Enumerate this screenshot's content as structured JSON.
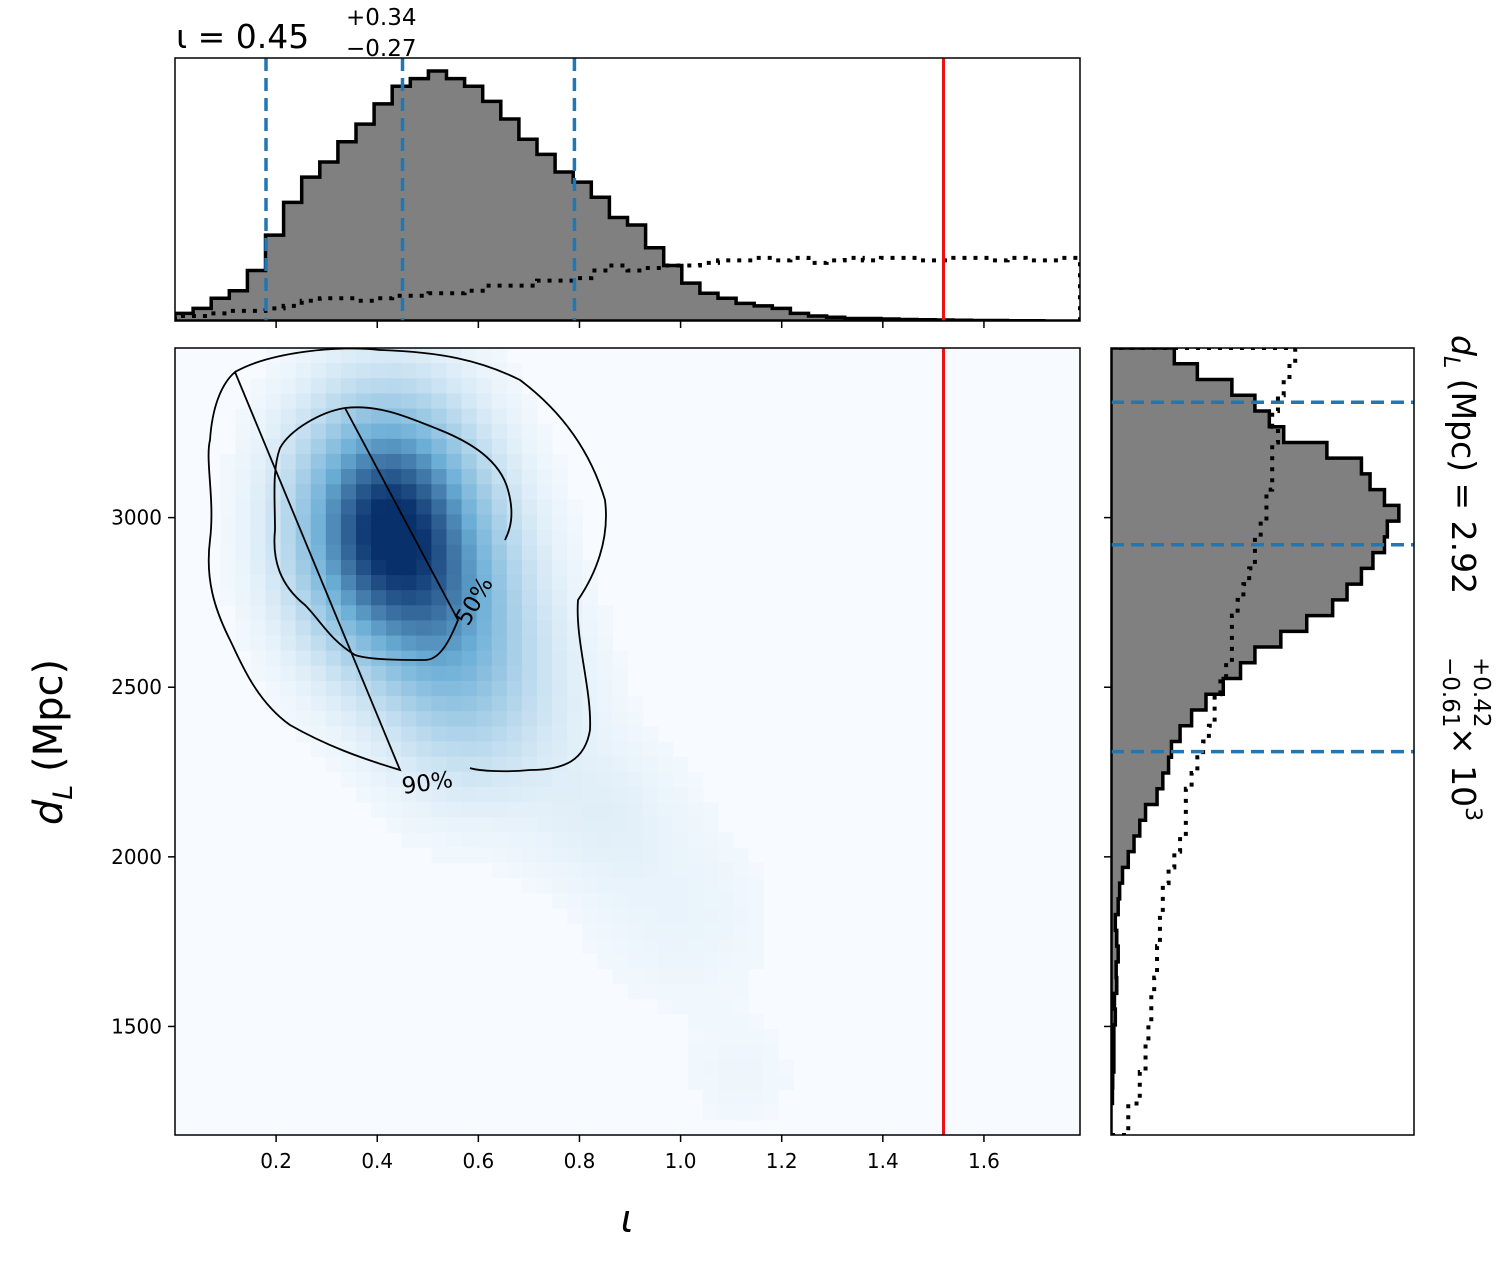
{
  "chart_data": {
    "type": "corner",
    "colors": {
      "hist_fill": "#808080",
      "hist_edge": "#000000",
      "quantile_line": "#1f77b4",
      "true_value_line": "#ee1111",
      "density_cmap_low": "#f7fbff",
      "density_cmap_high": "#08306b"
    },
    "iota": {
      "title": {
        "prefix": "ι = 0.45",
        "sup": "+0.34",
        "sub": "−0.27"
      },
      "xlabel": "ι",
      "xlim": [
        0.0,
        1.79
      ],
      "xticks": [
        "0.2",
        "0.4",
        "0.6",
        "0.8",
        "1.0",
        "1.2",
        "1.4",
        "1.6"
      ],
      "xtick_values": [
        0.2,
        0.4,
        0.6,
        0.8,
        1.0,
        1.2,
        1.4,
        1.6
      ],
      "quantiles": [
        0.18,
        0.45,
        0.79
      ],
      "true_value": 1.52,
      "posterior_hist": {
        "bin_edges_start": 0.0,
        "bin_width": 0.0358,
        "counts": [
          0.03,
          0.05,
          0.09,
          0.12,
          0.2,
          0.34,
          0.47,
          0.57,
          0.63,
          0.71,
          0.78,
          0.86,
          0.93,
          0.96,
          0.99,
          0.96,
          0.93,
          0.87,
          0.8,
          0.72,
          0.66,
          0.59,
          0.55,
          0.49,
          0.41,
          0.38,
          0.29,
          0.22,
          0.15,
          0.11,
          0.09,
          0.07,
          0.06,
          0.05,
          0.03,
          0.02,
          0.015,
          0.01,
          0.01,
          0.008,
          0.006,
          0.005,
          0.004,
          0.003,
          0.002,
          0.002,
          0.001,
          0.001,
          0.0,
          0.0
        ]
      },
      "prior_hist": {
        "counts": [
          0.02,
          0.02,
          0.03,
          0.04,
          0.04,
          0.05,
          0.06,
          0.08,
          0.09,
          0.09,
          0.08,
          0.09,
          0.1,
          0.1,
          0.11,
          0.11,
          0.12,
          0.14,
          0.14,
          0.14,
          0.16,
          0.16,
          0.17,
          0.2,
          0.22,
          0.2,
          0.21,
          0.22,
          0.22,
          0.23,
          0.24,
          0.24,
          0.25,
          0.24,
          0.25,
          0.23,
          0.24,
          0.25,
          0.24,
          0.25,
          0.25,
          0.24,
          0.24,
          0.25,
          0.25,
          0.24,
          0.25,
          0.24,
          0.24,
          0.25
        ]
      }
    },
    "dL": {
      "title": {
        "prefix": "d",
        "sub_L": "L",
        "rest": " (Mpc) = 2.92",
        "sup": "+0.42",
        "sub": "−0.61",
        "scale": " × 10",
        "scale_exp": "3"
      },
      "ylabel": {
        "var": "d",
        "sub": "L",
        "rest": " (Mpc)"
      },
      "ylim": [
        1180,
        3500
      ],
      "yticks": [
        "1500",
        "2000",
        "2500",
        "3000"
      ],
      "ytick_values": [
        1500,
        2000,
        2500,
        3000
      ],
      "quantiles": [
        2310,
        2920,
        3340
      ],
      "posterior_hist": {
        "bin_edges_start": 1180,
        "bin_width": 46.4,
        "counts": [
          0.0,
          0.0,
          0.005,
          0.006,
          0.01,
          0.01,
          0.01,
          0.015,
          0.012,
          0.02,
          0.018,
          0.025,
          0.02,
          0.015,
          0.025,
          0.03,
          0.04,
          0.06,
          0.08,
          0.1,
          0.12,
          0.16,
          0.18,
          0.2,
          0.21,
          0.24,
          0.28,
          0.33,
          0.39,
          0.45,
          0.5,
          0.59,
          0.68,
          0.77,
          0.82,
          0.87,
          0.91,
          0.95,
          0.96,
          1.0,
          0.95,
          0.9,
          0.87,
          0.75,
          0.6,
          0.55,
          0.5,
          0.42,
          0.3,
          0.22
        ]
      },
      "prior_hist": {
        "counts": [
          0.06,
          0.06,
          0.1,
          0.1,
          0.12,
          0.12,
          0.13,
          0.14,
          0.14,
          0.15,
          0.16,
          0.16,
          0.17,
          0.17,
          0.18,
          0.18,
          0.2,
          0.22,
          0.24,
          0.26,
          0.26,
          0.26,
          0.28,
          0.3,
          0.32,
          0.34,
          0.36,
          0.36,
          0.38,
          0.4,
          0.42,
          0.42,
          0.42,
          0.44,
          0.46,
          0.48,
          0.5,
          0.5,
          0.52,
          0.54,
          0.54,
          0.56,
          0.56,
          0.56,
          0.58,
          0.56,
          0.58,
          0.6,
          0.62,
          0.64
        ]
      }
    },
    "joint": {
      "density_blobs": [
        {
          "x": 0.42,
          "y": 2970,
          "sx": 0.11,
          "sy": 230,
          "w": 1.0
        },
        {
          "x": 0.55,
          "y": 2700,
          "sx": 0.1,
          "sy": 230,
          "w": 0.35
        },
        {
          "x": 0.62,
          "y": 2450,
          "sx": 0.12,
          "sy": 200,
          "w": 0.12
        },
        {
          "x": 0.85,
          "y": 2120,
          "sx": 0.1,
          "sy": 150,
          "w": 0.05
        },
        {
          "x": 1.0,
          "y": 1820,
          "sx": 0.12,
          "sy": 180,
          "w": 0.03
        },
        {
          "x": 1.12,
          "y": 1350,
          "sx": 0.08,
          "sy": 120,
          "w": 0.02
        }
      ],
      "contours": [
        {
          "label": "50%",
          "level": 0.5
        },
        {
          "label": "90%",
          "level": 0.9
        }
      ]
    }
  }
}
